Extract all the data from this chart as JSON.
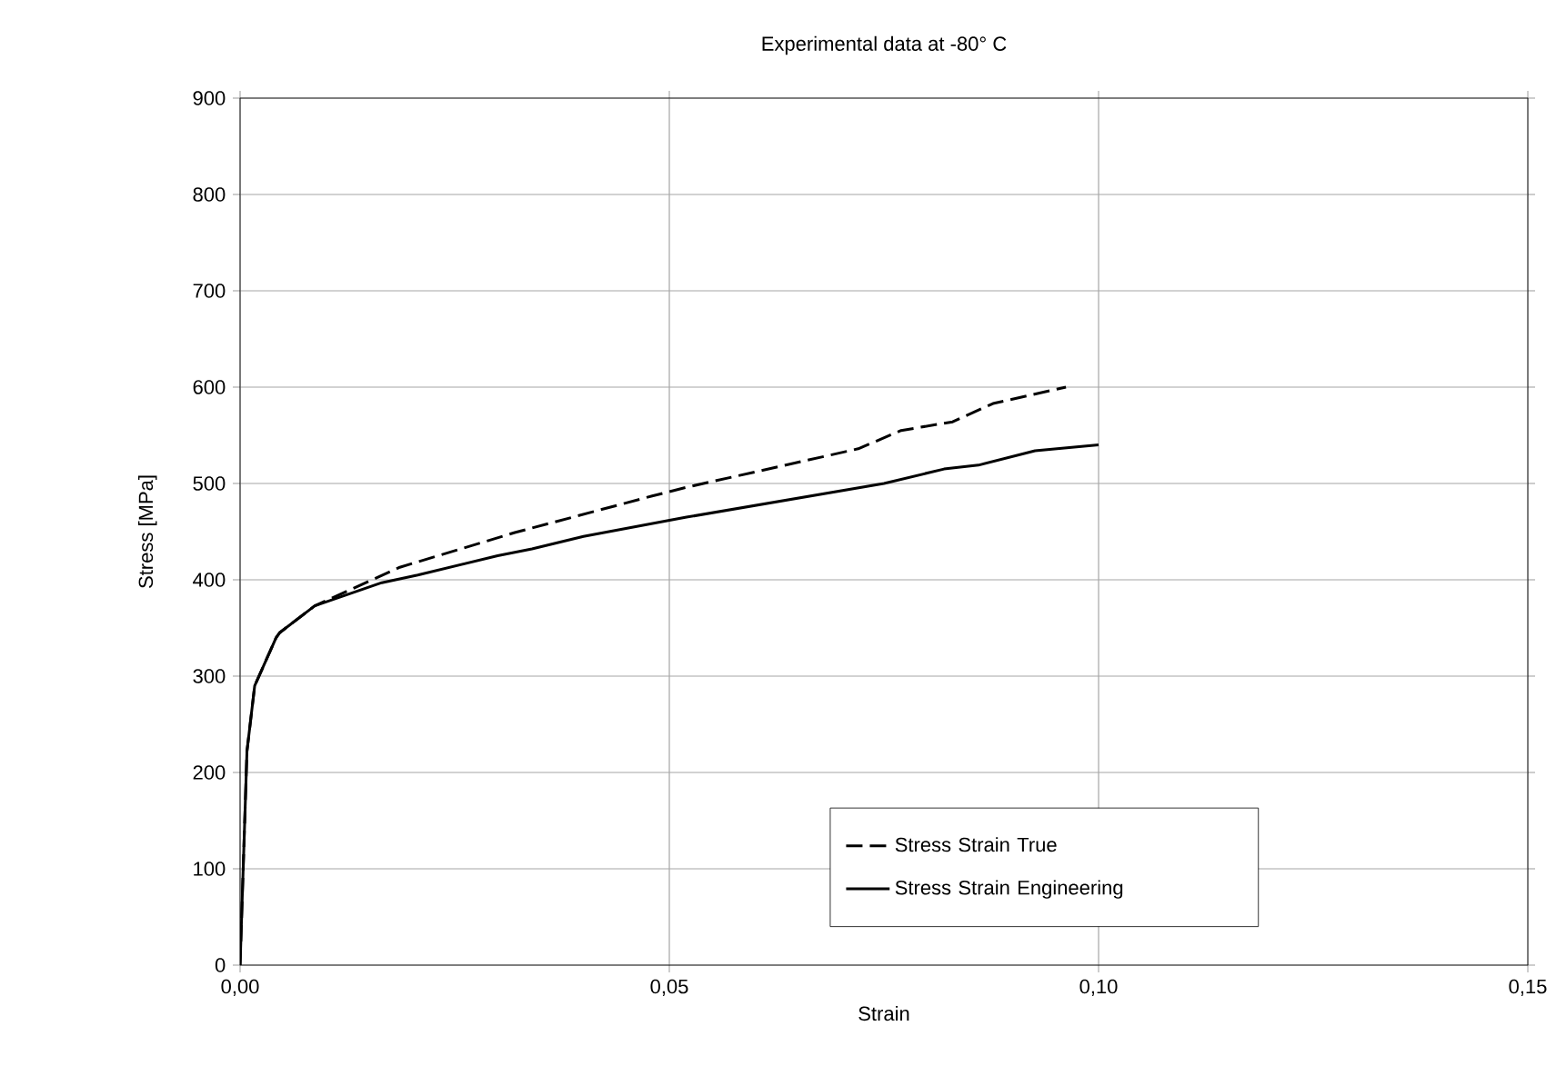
{
  "chart_data": {
    "type": "line",
    "title": "Experimental data at -80° C",
    "xlabel": "Strain",
    "ylabel": "Stress [MPa]",
    "xlim": [
      0,
      0.15
    ],
    "ylim": [
      0,
      900
    ],
    "xticks": [
      {
        "value": 0,
        "label": "0,00"
      },
      {
        "value": 0.05,
        "label": "0,05"
      },
      {
        "value": 0.1,
        "label": "0,10"
      },
      {
        "value": 0.15,
        "label": "0,15"
      }
    ],
    "yticks": [
      0,
      100,
      200,
      300,
      400,
      500,
      600,
      700,
      800,
      900
    ],
    "grid": true,
    "legend": "bottom right",
    "marker": "none",
    "series": [
      {
        "name": "Stress Strain  True",
        "color": "#000000",
        "line_style": "dashed",
        "x": [
          0,
          0.0008,
          0.0017,
          0.0042,
          0.0046,
          0.0087,
          0.0186,
          0.032,
          0.048,
          0.052,
          0.072,
          0.077,
          0.083,
          0.0877,
          0.0962
        ],
        "values": [
          0,
          222,
          290,
          340,
          345,
          373,
          413,
          449,
          487,
          496,
          536,
          555,
          564,
          583,
          600
        ]
      },
      {
        "name": "Stress Strain Engineering",
        "color": "#000000",
        "line_style": "solid",
        "x": [
          0,
          0.0008,
          0.0017,
          0.0042,
          0.0046,
          0.0087,
          0.0165,
          0.0207,
          0.03,
          0.034,
          0.04,
          0.052,
          0.075,
          0.082,
          0.086,
          0.0926,
          0.1
        ],
        "values": [
          0,
          222,
          290,
          340,
          345,
          373,
          397,
          405,
          425,
          432,
          445,
          465,
          500,
          515,
          519,
          534,
          540
        ]
      }
    ]
  }
}
